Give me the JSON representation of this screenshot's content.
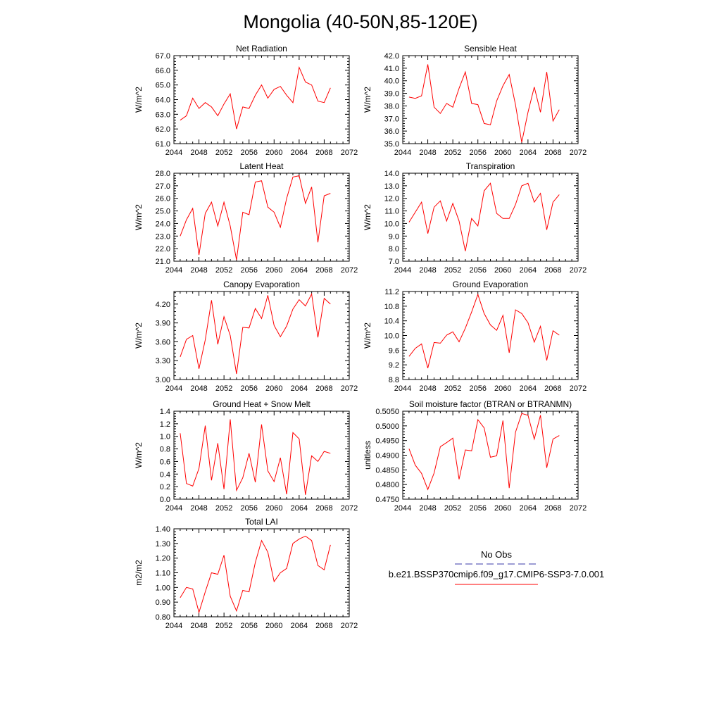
{
  "figure": {
    "title": "Mongolia (40-50N,85-120E)",
    "legend": {
      "obs_label": "No Obs",
      "obs_color": "#3a3aa8",
      "model_label": "b.e21.BSSP370cmip6.f09_g17.CMIP6-SSP3-7.0.001",
      "model_color": "#ff0000"
    }
  },
  "chart_data": [
    {
      "type": "line",
      "title": "Net Radiation",
      "ylabel": "W/m^2",
      "xlim": [
        2044,
        2072
      ],
      "ylim": [
        61.0,
        67.0
      ],
      "xticks": [
        2044,
        2048,
        2052,
        2056,
        2060,
        2064,
        2068,
        2072
      ],
      "yticks": [
        61.0,
        62.0,
        63.0,
        64.0,
        65.0,
        66.0,
        67.0
      ],
      "ytick_labels": [
        "61.0",
        "62.0",
        "63.0",
        "64.0",
        "65.0",
        "66.0",
        "67.0"
      ],
      "series": [
        {
          "color": "#ff0000",
          "x": [
            2045,
            2046,
            2047,
            2048,
            2049,
            2050,
            2051,
            2052,
            2053,
            2054,
            2055,
            2056,
            2057,
            2058,
            2059,
            2060,
            2061,
            2062,
            2063,
            2064,
            2065,
            2066,
            2067,
            2068,
            2069
          ],
          "values": [
            62.6,
            62.9,
            64.1,
            63.4,
            63.8,
            63.5,
            62.9,
            63.7,
            64.4,
            62.0,
            63.5,
            63.4,
            64.3,
            65.0,
            64.1,
            64.7,
            64.9,
            64.3,
            63.8,
            66.2,
            65.2,
            65.0,
            63.9,
            63.8,
            64.8
          ]
        }
      ]
    },
    {
      "type": "line",
      "title": "Sensible Heat",
      "ylabel": "W/m^2",
      "xlim": [
        2044,
        2072
      ],
      "ylim": [
        35.0,
        42.0
      ],
      "xticks": [
        2044,
        2048,
        2052,
        2056,
        2060,
        2064,
        2068,
        2072
      ],
      "yticks": [
        35.0,
        36.0,
        37.0,
        38.0,
        39.0,
        40.0,
        41.0,
        42.0
      ],
      "ytick_labels": [
        "35.0",
        "36.0",
        "37.0",
        "38.0",
        "39.0",
        "40.0",
        "41.0",
        "42.0"
      ],
      "series": [
        {
          "color": "#ff0000",
          "x": [
            2045,
            2046,
            2047,
            2048,
            2049,
            2050,
            2051,
            2052,
            2053,
            2054,
            2055,
            2056,
            2057,
            2058,
            2059,
            2060,
            2061,
            2062,
            2063,
            2064,
            2065,
            2066,
            2067,
            2068,
            2069
          ],
          "values": [
            38.7,
            38.6,
            38.8,
            41.3,
            37.9,
            37.4,
            38.2,
            37.9,
            39.4,
            40.7,
            38.2,
            38.1,
            36.6,
            36.5,
            38.4,
            39.6,
            40.5,
            38.1,
            35.1,
            37.5,
            39.5,
            37.5,
            40.7,
            36.8,
            37.7
          ]
        }
      ]
    },
    {
      "type": "line",
      "title": "Latent Heat",
      "ylabel": "W/m^2",
      "xlim": [
        2044,
        2072
      ],
      "ylim": [
        21.0,
        28.0
      ],
      "xticks": [
        2044,
        2048,
        2052,
        2056,
        2060,
        2064,
        2068,
        2072
      ],
      "yticks": [
        21.0,
        22.0,
        23.0,
        24.0,
        25.0,
        26.0,
        27.0,
        28.0
      ],
      "ytick_labels": [
        "21.0",
        "22.0",
        "23.0",
        "24.0",
        "25.0",
        "26.0",
        "27.0",
        "28.0"
      ],
      "series": [
        {
          "color": "#ff0000",
          "x": [
            2045,
            2046,
            2047,
            2048,
            2049,
            2050,
            2051,
            2052,
            2053,
            2054,
            2055,
            2056,
            2057,
            2058,
            2059,
            2060,
            2061,
            2062,
            2063,
            2064,
            2065,
            2066,
            2067,
            2068,
            2069
          ],
          "values": [
            23.0,
            24.3,
            25.2,
            21.5,
            24.8,
            25.7,
            23.8,
            25.7,
            23.8,
            21.1,
            24.9,
            24.7,
            27.3,
            27.4,
            25.3,
            24.9,
            23.7,
            26.0,
            27.7,
            27.8,
            25.6,
            26.9,
            22.5,
            26.2,
            26.4
          ]
        }
      ]
    },
    {
      "type": "line",
      "title": "Transpiration",
      "ylabel": "W/m^2",
      "xlim": [
        2044,
        2072
      ],
      "ylim": [
        7.0,
        14.0
      ],
      "xticks": [
        2044,
        2048,
        2052,
        2056,
        2060,
        2064,
        2068,
        2072
      ],
      "yticks": [
        7.0,
        8.0,
        9.0,
        10.0,
        11.0,
        12.0,
        13.0,
        14.0
      ],
      "ytick_labels": [
        "7.0",
        "8.0",
        "9.0",
        "10.0",
        "11.0",
        "12.0",
        "13.0",
        "14.0"
      ],
      "series": [
        {
          "color": "#ff0000",
          "x": [
            2045,
            2046,
            2047,
            2048,
            2049,
            2050,
            2051,
            2052,
            2053,
            2054,
            2055,
            2056,
            2057,
            2058,
            2059,
            2060,
            2061,
            2062,
            2063,
            2064,
            2065,
            2066,
            2067,
            2068,
            2069
          ],
          "values": [
            10.1,
            10.9,
            11.7,
            9.2,
            11.3,
            11.8,
            10.2,
            11.6,
            10.2,
            7.8,
            10.4,
            9.8,
            12.6,
            13.2,
            10.8,
            10.4,
            10.4,
            11.5,
            13.0,
            13.2,
            11.7,
            12.4,
            9.5,
            11.7,
            12.3
          ]
        }
      ]
    },
    {
      "type": "line",
      "title": "Canopy Evaporation",
      "ylabel": "W/m^2",
      "xlim": [
        2044,
        2072
      ],
      "ylim": [
        3.0,
        4.4
      ],
      "xticks": [
        2044,
        2048,
        2052,
        2056,
        2060,
        2064,
        2068,
        2072
      ],
      "yticks": [
        3.0,
        3.3,
        3.6,
        3.9,
        4.2
      ],
      "ytick_labels": [
        "3.00",
        "3.30",
        "3.60",
        "3.90",
        "4.20"
      ],
      "series": [
        {
          "color": "#ff0000",
          "x": [
            2045,
            2046,
            2047,
            2048,
            2049,
            2050,
            2051,
            2052,
            2053,
            2054,
            2055,
            2056,
            2057,
            2058,
            2059,
            2060,
            2061,
            2062,
            2063,
            2064,
            2065,
            2066,
            2067,
            2068,
            2069
          ],
          "values": [
            3.36,
            3.64,
            3.7,
            3.17,
            3.63,
            4.26,
            3.56,
            4.0,
            3.7,
            3.09,
            3.83,
            3.82,
            4.13,
            3.97,
            4.34,
            3.86,
            3.68,
            3.85,
            4.12,
            4.27,
            4.17,
            4.36,
            3.67,
            4.29,
            4.2
          ]
        }
      ]
    },
    {
      "type": "line",
      "title": "Ground Evaporation",
      "ylabel": "W/m^2",
      "xlim": [
        2044,
        2072
      ],
      "ylim": [
        8.8,
        11.2
      ],
      "xticks": [
        2044,
        2048,
        2052,
        2056,
        2060,
        2064,
        2068,
        2072
      ],
      "yticks": [
        8.8,
        9.2,
        9.6,
        10.0,
        10.4,
        10.8,
        11.2
      ],
      "ytick_labels": [
        "8.8",
        "9.2",
        "9.6",
        "10.0",
        "10.4",
        "10.8",
        "11.2"
      ],
      "series": [
        {
          "color": "#ff0000",
          "x": [
            2045,
            2046,
            2047,
            2048,
            2049,
            2050,
            2051,
            2052,
            2053,
            2054,
            2055,
            2056,
            2057,
            2058,
            2059,
            2060,
            2061,
            2062,
            2063,
            2064,
            2065,
            2066,
            2067,
            2068,
            2069
          ],
          "values": [
            9.43,
            9.65,
            9.77,
            9.11,
            9.81,
            9.79,
            10.01,
            10.1,
            9.83,
            10.2,
            10.64,
            11.12,
            10.6,
            10.29,
            10.14,
            10.55,
            9.53,
            10.7,
            10.6,
            10.35,
            9.82,
            10.25,
            9.32,
            10.13,
            10.01
          ]
        }
      ]
    },
    {
      "type": "line",
      "title": "Ground Heat + Snow Melt",
      "ylabel": "W/m^2",
      "xlim": [
        2044,
        2072
      ],
      "ylim": [
        0.0,
        1.4
      ],
      "xticks": [
        2044,
        2048,
        2052,
        2056,
        2060,
        2064,
        2068,
        2072
      ],
      "yticks": [
        0.0,
        0.2,
        0.4,
        0.6,
        0.8,
        1.0,
        1.2,
        1.4
      ],
      "ytick_labels": [
        "0.0",
        "0.2",
        "0.4",
        "0.6",
        "0.8",
        "1.0",
        "1.2",
        "1.4"
      ],
      "series": [
        {
          "color": "#ff0000",
          "x": [
            2045,
            2046,
            2047,
            2048,
            2049,
            2050,
            2051,
            2052,
            2053,
            2054,
            2055,
            2056,
            2057,
            2058,
            2059,
            2060,
            2061,
            2062,
            2063,
            2064,
            2065,
            2066,
            2067,
            2068,
            2069
          ],
          "values": [
            1.05,
            0.25,
            0.21,
            0.49,
            1.17,
            0.3,
            0.89,
            0.16,
            1.27,
            0.14,
            0.34,
            0.73,
            0.27,
            1.19,
            0.45,
            0.28,
            0.66,
            0.08,
            1.06,
            0.96,
            0.07,
            0.69,
            0.6,
            0.76,
            0.73
          ]
        }
      ]
    },
    {
      "type": "line",
      "title": "Soil moisture factor (BTRAN or BTRANMN)",
      "ylabel": "unitless",
      "xlim": [
        2044,
        2072
      ],
      "ylim": [
        0.475,
        0.505
      ],
      "xticks": [
        2044,
        2048,
        2052,
        2056,
        2060,
        2064,
        2068,
        2072
      ],
      "yticks": [
        0.475,
        0.48,
        0.485,
        0.49,
        0.495,
        0.5,
        0.505
      ],
      "ytick_labels": [
        "0.4750",
        "0.4800",
        "0.4850",
        "0.4900",
        "0.4950",
        "0.5000",
        "0.5050"
      ],
      "series": [
        {
          "color": "#ff0000",
          "x": [
            2045,
            2046,
            2047,
            2048,
            2049,
            2050,
            2051,
            2052,
            2053,
            2054,
            2055,
            2056,
            2057,
            2058,
            2059,
            2060,
            2061,
            2062,
            2063,
            2064,
            2065,
            2066,
            2067,
            2068,
            2069
          ],
          "values": [
            0.4922,
            0.4866,
            0.4838,
            0.4783,
            0.4839,
            0.4929,
            0.4943,
            0.4958,
            0.4818,
            0.4918,
            0.4915,
            0.5021,
            0.4993,
            0.4893,
            0.4898,
            0.5018,
            0.4788,
            0.4978,
            0.5042,
            0.5036,
            0.4955,
            0.5036,
            0.4857,
            0.4955,
            0.4967
          ]
        }
      ]
    },
    {
      "type": "line",
      "title": "Total LAI",
      "ylabel": "m2/m2",
      "xlim": [
        2044,
        2072
      ],
      "ylim": [
        0.8,
        1.4
      ],
      "xticks": [
        2044,
        2048,
        2052,
        2056,
        2060,
        2064,
        2068,
        2072
      ],
      "yticks": [
        0.8,
        0.9,
        1.0,
        1.1,
        1.2,
        1.3,
        1.4
      ],
      "ytick_labels": [
        "0.80",
        "0.90",
        "1.00",
        "1.10",
        "1.20",
        "1.30",
        "1.40"
      ],
      "series": [
        {
          "color": "#ff0000",
          "x": [
            2045,
            2046,
            2047,
            2048,
            2049,
            2050,
            2051,
            2052,
            2053,
            2054,
            2055,
            2056,
            2057,
            2058,
            2059,
            2060,
            2061,
            2062,
            2063,
            2064,
            2065,
            2066,
            2067,
            2068,
            2069
          ],
          "values": [
            0.93,
            1.0,
            0.99,
            0.83,
            0.97,
            1.1,
            1.09,
            1.22,
            0.94,
            0.84,
            0.98,
            0.97,
            1.17,
            1.32,
            1.24,
            1.04,
            1.1,
            1.13,
            1.3,
            1.33,
            1.35,
            1.32,
            1.15,
            1.12,
            1.29
          ]
        }
      ]
    }
  ]
}
